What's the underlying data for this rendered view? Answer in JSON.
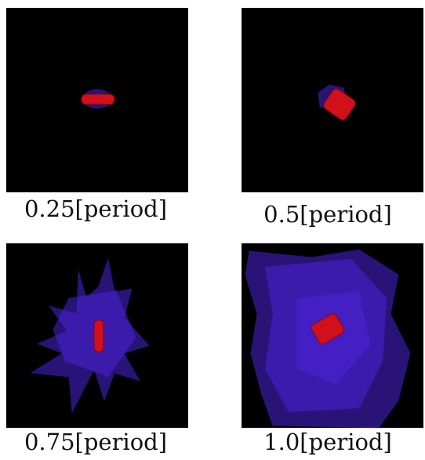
{
  "panels": [
    {
      "caption": "0.25[period]"
    },
    {
      "caption": "0.5[period]"
    },
    {
      "caption": "0.75[period]"
    },
    {
      "caption": "1.0[period]"
    }
  ]
}
